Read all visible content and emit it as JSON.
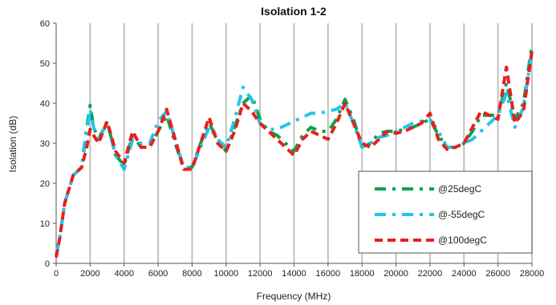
{
  "chart_data": {
    "type": "line",
    "title": "Isolation 1-2",
    "xlabel": "Frequency (MHz)",
    "ylabel": "Isolation (dB)",
    "xlim": [
      0,
      28000
    ],
    "ylim": [
      0,
      60
    ],
    "xticks": [
      0,
      2000,
      4000,
      6000,
      8000,
      10000,
      12000,
      14000,
      16000,
      18000,
      20000,
      22000,
      24000,
      26000,
      28000
    ],
    "yticks": [
      0,
      10,
      20,
      30,
      40,
      50,
      60
    ],
    "grid": "vertical",
    "legend_position": "lower-right",
    "series": [
      {
        "name": "@25degC",
        "color": "#00a550",
        "dash": "dash-dot",
        "x": [
          0,
          200,
          500,
          1000,
          1500,
          1800,
          2000,
          2200,
          2500,
          3000,
          3500,
          4000,
          4500,
          5000,
          5500,
          6000,
          6500,
          7000,
          7500,
          8000,
          8500,
          9000,
          9500,
          10000,
          10500,
          11000,
          11500,
          12000,
          12500,
          13000,
          13500,
          14000,
          14500,
          15000,
          15500,
          16000,
          16500,
          17000,
          17500,
          18000,
          18500,
          19000,
          19500,
          20000,
          20500,
          21000,
          21500,
          22000,
          22500,
          23000,
          23500,
          24000,
          24500,
          25000,
          25500,
          26000,
          26500,
          27000,
          27500,
          28000
        ],
        "y": [
          2,
          6,
          15,
          22,
          24,
          34,
          39.5,
          34,
          31,
          35.5,
          27,
          24.5,
          32,
          29,
          29,
          33,
          37,
          30,
          24,
          24,
          30,
          35,
          31,
          28,
          34,
          40,
          42,
          36,
          33,
          32,
          30,
          28,
          32,
          34,
          33,
          33,
          36,
          41,
          36,
          29,
          30,
          32.5,
          33,
          33,
          33.5,
          34,
          35,
          36,
          32,
          29,
          29,
          30,
          33,
          37,
          37,
          37,
          45,
          36,
          40,
          54.5
        ]
      },
      {
        "name": "@-55degC",
        "color": "#22c4ec",
        "dash": "dash-dot",
        "x": [
          0,
          200,
          500,
          1000,
          1500,
          1800,
          2000,
          2200,
          2500,
          3000,
          3500,
          4000,
          4500,
          5000,
          5500,
          6000,
          6500,
          7000,
          7500,
          8000,
          8500,
          9000,
          9500,
          10000,
          10500,
          11000,
          11500,
          12000,
          12500,
          13000,
          13500,
          14000,
          14500,
          15000,
          15500,
          16000,
          16500,
          17000,
          17500,
          18000,
          18500,
          19000,
          19500,
          20000,
          20500,
          21000,
          21500,
          22000,
          22500,
          23000,
          23500,
          24000,
          24500,
          25000,
          25500,
          26000,
          26500,
          27000,
          27500,
          28000
        ],
        "y": [
          2,
          6,
          15,
          22,
          24,
          33,
          38.5,
          34,
          31,
          35,
          27,
          23.5,
          31,
          30,
          30,
          35.5,
          38,
          31,
          24,
          24,
          29,
          34,
          31,
          29,
          36,
          44,
          41,
          35,
          33.5,
          33.5,
          34.5,
          35.5,
          36.5,
          37.5,
          37.5,
          38,
          38.5,
          40,
          35,
          29,
          30,
          31.5,
          32,
          33,
          34,
          35,
          35.5,
          36,
          33,
          29,
          29,
          30,
          31,
          33,
          35,
          37,
          42.5,
          34,
          39,
          53
        ]
      },
      {
        "name": "@100degC",
        "color": "#e8201c",
        "dash": "dashed",
        "x": [
          0,
          200,
          500,
          1000,
          1500,
          1800,
          2000,
          2200,
          2500,
          3000,
          3500,
          4000,
          4500,
          5000,
          5500,
          6000,
          6500,
          7000,
          7500,
          8000,
          8500,
          9000,
          9500,
          10000,
          10500,
          11000,
          11500,
          12000,
          12500,
          13000,
          13500,
          14000,
          14500,
          15000,
          15500,
          16000,
          16500,
          17000,
          17500,
          18000,
          18500,
          19000,
          19500,
          20000,
          20500,
          21000,
          21500,
          22000,
          22500,
          23000,
          23500,
          24000,
          24500,
          25000,
          25500,
          26000,
          26500,
          27000,
          27500,
          28000
        ],
        "y": [
          1.5,
          6,
          15,
          22,
          24,
          29,
          33.5,
          32,
          30,
          35.5,
          28,
          25,
          33,
          29,
          29,
          33,
          38.5,
          31,
          23.5,
          23.5,
          30,
          36.5,
          30,
          28,
          33,
          40,
          38,
          35,
          33,
          31,
          29,
          27,
          31,
          33,
          32,
          31,
          35,
          40,
          35,
          30,
          29,
          31,
          33,
          32.5,
          33,
          34,
          35,
          37.5,
          31,
          28.5,
          29,
          30,
          34,
          38,
          37,
          36,
          49,
          35,
          38,
          53
        ]
      }
    ]
  },
  "legend": {
    "items": [
      "@25degC",
      "@-55degC",
      "@100degC"
    ]
  }
}
